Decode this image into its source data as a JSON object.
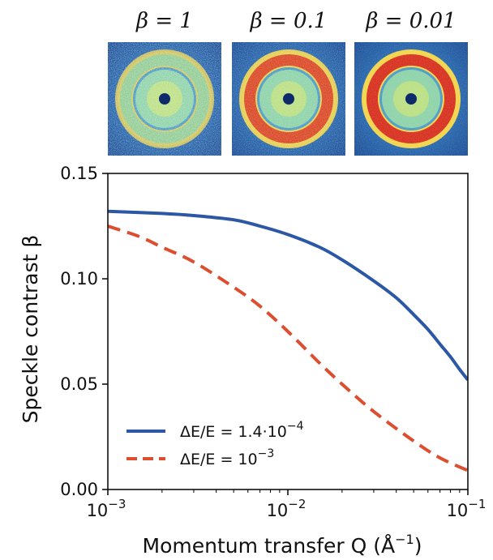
{
  "speckle_panels": [
    {
      "label": "β = 1",
      "ring_color": "#5fd0c0",
      "ring_opacity": 0.55
    },
    {
      "label": "β = 0.1",
      "ring_color": "#d7301f",
      "ring_opacity": 0.85
    },
    {
      "label": "β = 0.01",
      "ring_color": "#d7301f",
      "ring_opacity": 1.0
    }
  ],
  "chart_data": {
    "type": "line",
    "xlabel": "Momentum transfer Q (Å",
    "xlabel_exp": "−1",
    "xlabel_close": ")",
    "ylabel": "Speckle contrast β",
    "xscale": "log",
    "xlim": [
      0.001,
      0.1
    ],
    "ylim": [
      0.0,
      0.15
    ],
    "x_ticks": [
      {
        "value": 0.001,
        "base": "10",
        "exp": "−3"
      },
      {
        "value": 0.01,
        "base": "10",
        "exp": "−2"
      },
      {
        "value": 0.1,
        "base": "10",
        "exp": "−1"
      }
    ],
    "y_ticks": [
      {
        "value": 0.0,
        "label": "0.00"
      },
      {
        "value": 0.05,
        "label": "0.05"
      },
      {
        "value": 0.1,
        "label": "0.10"
      },
      {
        "value": 0.15,
        "label": "0.15"
      }
    ],
    "grid": false,
    "legend_position": "lower-left",
    "series": [
      {
        "legend_text": "ΔE/E = 1.4·10",
        "legend_exp": "−4",
        "color": "#2b57a5",
        "dash": "solid",
        "x": [
          0.001,
          0.002,
          0.003,
          0.005,
          0.007,
          0.01,
          0.015,
          0.02,
          0.03,
          0.04,
          0.05,
          0.06,
          0.07,
          0.08,
          0.09,
          0.1
        ],
        "y": [
          0.132,
          0.131,
          0.13,
          0.128,
          0.125,
          0.121,
          0.115,
          0.109,
          0.099,
          0.091,
          0.083,
          0.076,
          0.069,
          0.063,
          0.057,
          0.052
        ]
      },
      {
        "legend_text": "ΔE/E = 10",
        "legend_exp": "−3",
        "color": "#dc4e2f",
        "dash": "dashed",
        "x": [
          0.001,
          0.0015,
          0.002,
          0.003,
          0.005,
          0.007,
          0.01,
          0.015,
          0.02,
          0.03,
          0.05,
          0.07,
          0.1
        ],
        "y": [
          0.125,
          0.12,
          0.115,
          0.108,
          0.096,
          0.087,
          0.075,
          0.06,
          0.05,
          0.037,
          0.023,
          0.015,
          0.009
        ]
      }
    ]
  }
}
